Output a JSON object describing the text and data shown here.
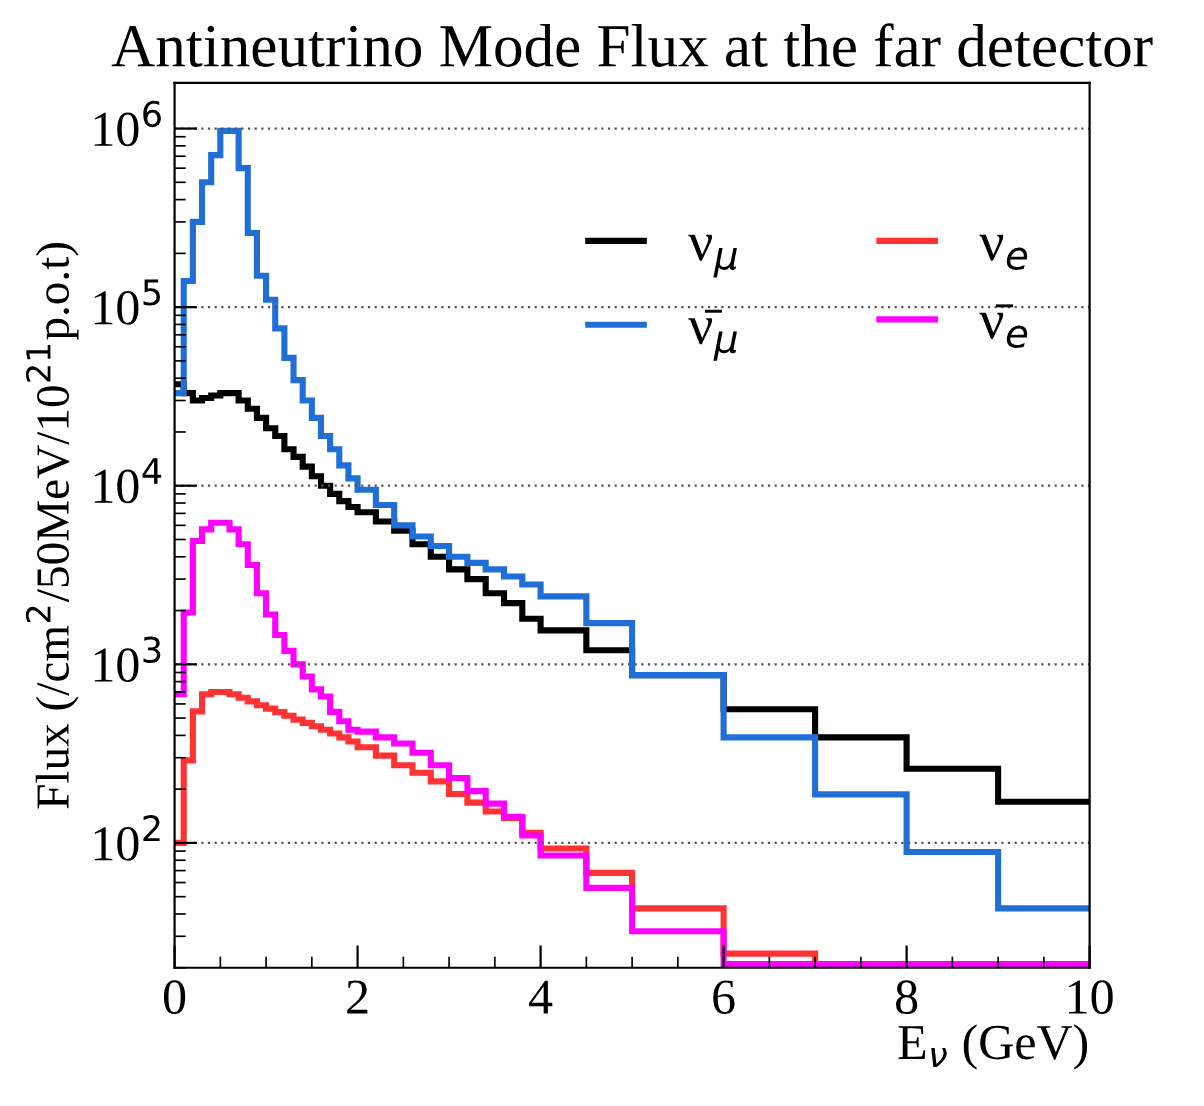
{
  "chart_data": {
    "type": "histogram",
    "title": "Antineutrino Mode Flux at the far detector",
    "xlabel": "E$_{ν}$ (GeV)",
    "ylabel": "Flux (/cm$^{2}$/50MeV/10$^{21}$p.o.t)",
    "bins": [
      0,
      0.1,
      0.2,
      0.3,
      0.4,
      0.5,
      0.6,
      0.7,
      0.8,
      0.9,
      1.0,
      1.1,
      1.2,
      1.3,
      1.4,
      1.5,
      1.6,
      1.7,
      1.8,
      1.9,
      2.0,
      2.2,
      2.4,
      2.6,
      2.8,
      3.0,
      3.2,
      3.4,
      3.6,
      3.8,
      4.0,
      4.5,
      5,
      6,
      7,
      8,
      9,
      10
    ],
    "series": [
      {
        "name": "ν$_{μ}$",
        "color": "#000000",
        "values": [
          37000,
          33000,
          30000,
          31000,
          32000,
          33000,
          33000,
          30000,
          27000,
          24000,
          21000,
          19000,
          16000,
          14500,
          12800,
          11300,
          10000,
          9000,
          8200,
          7600,
          7100,
          6300,
          5600,
          4700,
          4000,
          3400,
          3000,
          2500,
          2200,
          1800,
          1550,
          1200,
          870,
          560,
          390,
          260,
          170
        ]
      },
      {
        "name": "ν̄$_{μ}$",
        "color": "#1f6fd6",
        "values": [
          33000,
          140000,
          300000,
          500000,
          710000,
          970000,
          970000,
          600000,
          260000,
          150000,
          110000,
          76000,
          52000,
          39000,
          30000,
          24000,
          19000,
          16000,
          13000,
          11000,
          9500,
          7800,
          6000,
          5200,
          4600,
          4000,
          3700,
          3400,
          3100,
          2800,
          2400,
          1700,
          870,
          390,
          187,
          89,
          43
        ]
      },
      {
        "name": "ν$_{e}$",
        "color": "#ff3333",
        "values": [
          100,
          290,
          545,
          680,
          700,
          700,
          680,
          650,
          620,
          590,
          565,
          540,
          515,
          490,
          470,
          450,
          430,
          410,
          390,
          370,
          343,
          308,
          272,
          247,
          221,
          188,
          168,
          150,
          138,
          114,
          93,
          68,
          43,
          24,
          21,
          21,
          21
        ]
      },
      {
        "name": "ν̄$_{e}$",
        "color": "#ff00ff",
        "values": [
          680,
          1950,
          4900,
          5700,
          6200,
          6200,
          5700,
          4700,
          3600,
          2500,
          1900,
          1460,
          1190,
          1000,
          855,
          724,
          660,
          542,
          480,
          430,
          420,
          390,
          360,
          320,
          272,
          231,
          195,
          166,
          140,
          110,
          85,
          56,
          32,
          21,
          21,
          21,
          21
        ]
      }
    ],
    "log": "y",
    "xlim": [
      0,
      10
    ],
    "ylim": [
      20,
      1800000
    ],
    "xticks": [
      0,
      2,
      4,
      6,
      8,
      10
    ],
    "yticks": [
      {
        "value": 100,
        "label": "10$^{2}$"
      },
      {
        "value": 1000,
        "label": "10$^{3}$"
      },
      {
        "value": 10000,
        "label": "10$^{4}$"
      },
      {
        "value": 100000,
        "label": "10$^{5}$"
      },
      {
        "value": 1000000,
        "label": "10$^{6}$"
      }
    ],
    "grid": "y",
    "legend": "top right"
  }
}
